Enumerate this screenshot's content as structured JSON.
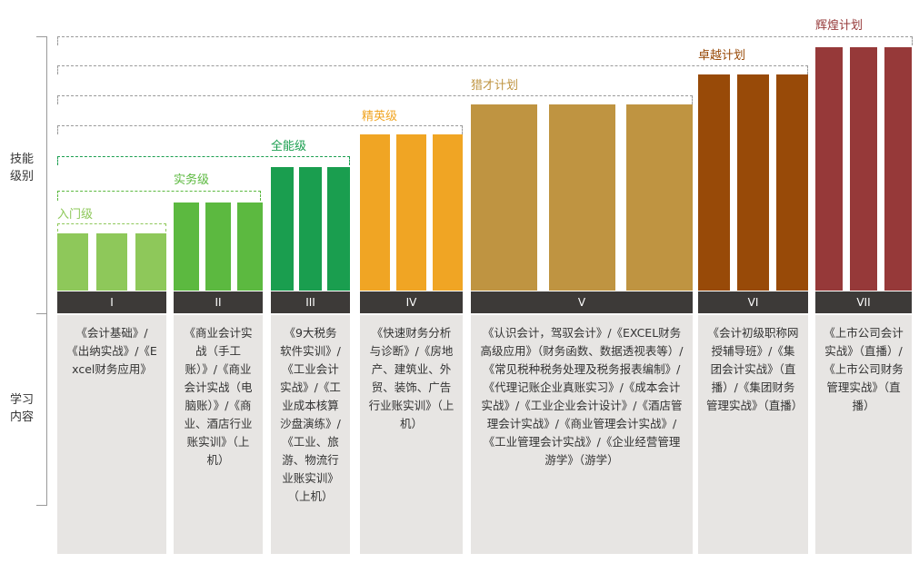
{
  "axis": {
    "skill_label_line1": "技能",
    "skill_label_line2": "级别",
    "study_label_line1": "学习",
    "study_label_line2": "内容"
  },
  "levels": [
    {
      "id": "entry",
      "name": "入门级",
      "numeral": "I",
      "bar_color": "#8ec85a",
      "label_color": "#8ec85a",
      "height_rank": 1,
      "content": "《会计基础》/《出纳实战》/《Excel财务应用》"
    },
    {
      "id": "practice",
      "name": "实务级",
      "numeral": "II",
      "bar_color": "#5cb940",
      "label_color": "#5cb940",
      "height_rank": 2,
      "content": "《商业会计实战（手工账）》/《商业会计实战（电脑账）》/《商业、酒店行业账实训》（上机）"
    },
    {
      "id": "allround",
      "name": "全能级",
      "numeral": "III",
      "bar_color": "#1a9e4f",
      "label_color": "#1a9e4f",
      "height_rank": 3,
      "content": "《9大税务软件实训》/《工业会计实战》/《工业成本核算沙盘演练》/《工业、旅游、物流行业账实训》（上机）"
    },
    {
      "id": "elite",
      "name": "精英级",
      "numeral": "IV",
      "bar_color": "#f0a524",
      "label_color": "#f0a524",
      "height_rank": 4,
      "content": "《快速财务分析与诊断》/《房地产、建筑业、外贸、装饰、广告行业账实训》（上机）"
    },
    {
      "id": "cheetah",
      "name": "猎才计划",
      "numeral": "V",
      "bar_color": "#bf9441",
      "label_color": "#bf9441",
      "height_rank": 5,
      "content": "《认识会计，驾驭会计》/《EXCEL财务高级应用》（财务函数、数据透视表等）/《常见税种税务处理及税务报表编制》/《代理记账企业真账实习》/《成本会计实战》/《工业企业会计设计》/《酒店管理会计实战》/《商业管理会计实战》/《工业管理会计实战》/《企业经营管理游学》（游学）"
    },
    {
      "id": "excellence",
      "name": "卓越计划",
      "numeral": "VI",
      "bar_color": "#984a08",
      "label_color": "#984a08",
      "height_rank": 6,
      "content": "《会计初级职称网授辅导班》/《集团会计实战》（直播）/《集团财务管理实战》（直播）"
    },
    {
      "id": "brilliant",
      "name": "辉煌计划",
      "numeral": "VII",
      "bar_color": "#963939",
      "label_color": "#963939",
      "height_rank": 7,
      "content": "《上市公司会计实战》（直播）/《上市公司财务管理实战》（直播）"
    }
  ]
}
